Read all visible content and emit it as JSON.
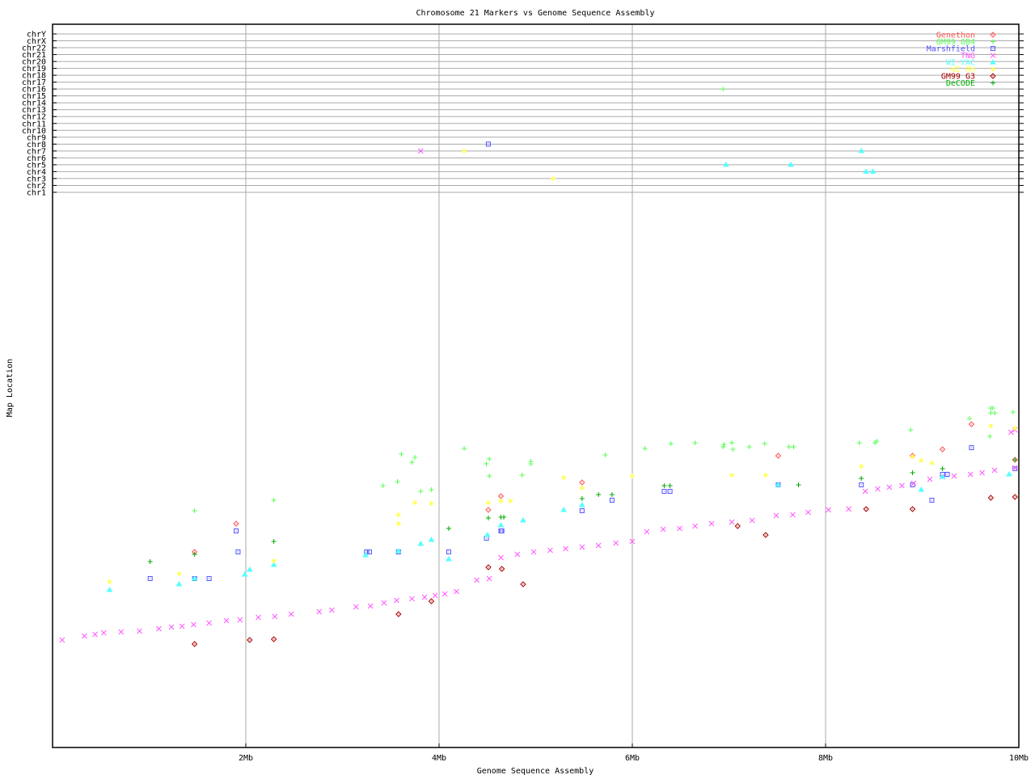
{
  "chart_data": {
    "type": "scatter",
    "title": "Chromosome 21 Markers vs Genome Sequence Assembly",
    "xlabel": "Genome Sequence Assembly",
    "ylabel": "Map Location",
    "xlim": [
      0,
      10
    ],
    "x_unit": "Mb",
    "x_ticks": [
      "2Mb",
      "4Mb",
      "6Mb",
      "8Mb",
      "10Mb"
    ],
    "x_tick_values": [
      2,
      4,
      6,
      8,
      10
    ],
    "ylim": [
      0,
      68.5
    ],
    "grid": true,
    "legend_placement": "top-right",
    "chromosome_rows": [
      "chrY",
      "chrX",
      "chr22",
      "chr21",
      "chr20",
      "chr19",
      "chr18",
      "chr17",
      "chr16",
      "chr15",
      "chr14",
      "chr13",
      "chr12",
      "chr11",
      "chr10",
      "chr9",
      "chr8",
      "chr7",
      "chr6",
      "chr5",
      "chr4",
      "chr3",
      "chr2",
      "chr1"
    ],
    "series": [
      {
        "name": "Genethon",
        "color": "#ff5555",
        "marker": "diamond",
        "x": [
          1.47,
          1.9,
          4.51,
          4.64,
          5.48,
          7.51,
          8.9,
          9.21,
          9.51,
          9.96
        ],
        "y": [
          24.2,
          27.7,
          29.4,
          31.1,
          32.8,
          36.1,
          36.1,
          36.9,
          40.0,
          35.6
        ],
        "other_chr": []
      },
      {
        "name": "GM99 GB4",
        "color": "#55ff55",
        "marker": "plus",
        "x": [
          1.47,
          2.29,
          3.42,
          3.57,
          3.61,
          3.72,
          3.75,
          3.81,
          3.92,
          4.26,
          4.49,
          4.52,
          4.52,
          4.86,
          4.95,
          4.95,
          5.72,
          6.13,
          6.4,
          6.65,
          6.94,
          6.95,
          7.03,
          7.04,
          7.21,
          7.37,
          7.62,
          7.67,
          8.35,
          8.51,
          8.53,
          8.88,
          9.49,
          9.71,
          9.73,
          9.71,
          9.75,
          9.7,
          9.94
        ],
        "y": [
          29.3,
          30.6,
          32.4,
          32.9,
          36.3,
          35.3,
          35.9,
          31.7,
          31.9,
          37.0,
          35.1,
          35.7,
          33.6,
          33.7,
          35.4,
          35.1,
          36.2,
          37.0,
          37.6,
          37.7,
          37.2,
          37.5,
          37.7,
          36.9,
          37.2,
          37.6,
          37.2,
          37.2,
          37.7,
          37.7,
          37.9,
          39.3,
          40.7,
          42.0,
          42.0,
          41.4,
          41.4,
          38.5,
          41.5
        ],
        "other_chr": [
          {
            "x": 6.94,
            "chr": "chr16"
          }
        ]
      },
      {
        "name": "Marshfield",
        "color": "#5555ff",
        "marker": "square",
        "x": [
          1.01,
          1.47,
          1.62,
          1.9,
          1.92,
          3.25,
          3.28,
          3.58,
          4.1,
          4.49,
          4.64,
          4.65,
          5.48,
          5.79,
          6.33,
          6.39,
          7.51,
          8.37,
          8.9,
          9.1,
          9.21,
          9.26,
          9.51,
          9.96
        ],
        "y": [
          20.9,
          20.9,
          20.9,
          26.8,
          24.2,
          24.2,
          24.2,
          24.2,
          24.2,
          25.9,
          26.8,
          26.8,
          29.3,
          30.6,
          31.7,
          31.7,
          32.5,
          32.5,
          32.5,
          30.6,
          33.8,
          33.8,
          37.1,
          34.5
        ],
        "other_chr": [
          {
            "x": 4.51,
            "chr": "chr8"
          }
        ]
      },
      {
        "name": "TNG",
        "color": "#ff55ff",
        "marker": "cross",
        "x": [
          0.1,
          0.33,
          0.44,
          0.53,
          0.71,
          0.9,
          1.1,
          1.23,
          1.34,
          1.46,
          1.62,
          1.8,
          1.94,
          2.13,
          2.3,
          2.47,
          2.76,
          2.89,
          3.14,
          3.29,
          3.43,
          3.56,
          3.72,
          3.85,
          3.96,
          4.06,
          4.18,
          4.39,
          4.52,
          4.64,
          4.81,
          4.98,
          5.15,
          5.31,
          5.48,
          5.65,
          5.83,
          6.0,
          6.15,
          6.32,
          6.49,
          6.65,
          6.82,
          7.03,
          7.24,
          7.49,
          7.66,
          7.82,
          8.03,
          8.24,
          8.41,
          8.54,
          8.66,
          8.79,
          8.91,
          9.08,
          9.21,
          9.33,
          9.5,
          9.62,
          9.75,
          9.96,
          9.92,
          9.96
        ],
        "y": [
          13.3,
          13.8,
          14.0,
          14.2,
          14.3,
          14.4,
          14.7,
          14.9,
          15.0,
          15.2,
          15.4,
          15.7,
          15.8,
          16.1,
          16.2,
          16.5,
          16.8,
          17.0,
          17.4,
          17.5,
          17.9,
          18.2,
          18.4,
          18.6,
          18.8,
          19.0,
          19.3,
          20.7,
          20.9,
          23.5,
          23.9,
          24.2,
          24.4,
          24.6,
          24.8,
          25.0,
          25.3,
          25.5,
          26.7,
          27.0,
          27.1,
          27.4,
          27.7,
          27.9,
          28.1,
          28.7,
          28.8,
          29.1,
          29.4,
          29.5,
          31.7,
          32.0,
          32.2,
          32.4,
          32.7,
          33.2,
          33.5,
          33.6,
          33.8,
          34.0,
          34.3,
          34.6,
          39.0,
          39.3
        ],
        "other_chr": [
          {
            "x": 3.81,
            "chr": "chr7"
          }
        ]
      },
      {
        "name": "WI YAC",
        "color": "#55ffff",
        "marker": "triangle",
        "x": [
          0.59,
          1.31,
          1.47,
          1.99,
          2.04,
          2.29,
          3.24,
          3.58,
          3.81,
          3.92,
          4.1,
          4.5,
          4.64,
          4.87,
          5.29,
          5.48,
          7.51,
          8.99,
          9.21,
          9.9
        ],
        "y": [
          19.5,
          20.2,
          20.9,
          21.4,
          22.0,
          22.6,
          23.8,
          24.3,
          25.2,
          25.7,
          23.3,
          26.3,
          27.5,
          28.1,
          29.4,
          30.0,
          32.5,
          31.9,
          33.5,
          33.8
        ],
        "other_chr": [
          {
            "x": 6.97,
            "chr": "chr5"
          },
          {
            "x": 7.64,
            "chr": "chr5"
          },
          {
            "x": 8.37,
            "chr": "chr7"
          },
          {
            "x": 8.42,
            "chr": "chr4"
          },
          {
            "x": 8.49,
            "chr": "chr4"
          }
        ]
      },
      {
        "name": "WI RH",
        "color": "#ffff55",
        "marker": "asterisk",
        "x": [
          0.59,
          1.31,
          2.29,
          3.58,
          3.58,
          3.75,
          3.92,
          4.51,
          4.64,
          4.74,
          5.29,
          5.48,
          6.0,
          7.03,
          7.38,
          8.37,
          8.9,
          8.99,
          9.1,
          9.71,
          9.96
        ],
        "y": [
          20.5,
          21.5,
          23.1,
          28.8,
          27.7,
          30.3,
          30.2,
          30.3,
          30.5,
          30.5,
          33.4,
          32.1,
          33.6,
          33.7,
          33.7,
          34.8,
          36.0,
          35.5,
          35.2,
          39.8,
          39.5
        ],
        "other_chr": [
          {
            "x": 4.26,
            "chr": "chr7"
          },
          {
            "x": 5.18,
            "chr": "chr3"
          }
        ]
      },
      {
        "name": "GM99 G3",
        "color": "#aa0000",
        "marker": "diamond",
        "x": [
          1.47,
          2.04,
          2.29,
          3.58,
          3.92,
          4.51,
          4.65,
          4.87,
          7.09,
          7.38,
          8.42,
          8.9,
          9.71,
          9.96
        ],
        "y": [
          12.8,
          13.3,
          13.4,
          16.5,
          18.1,
          22.3,
          22.1,
          20.2,
          27.4,
          26.3,
          29.5,
          29.5,
          30.9,
          31.0
        ],
        "other_chr": []
      },
      {
        "name": "DeCODE",
        "color": "#00aa00",
        "marker": "plus",
        "x": [
          1.01,
          1.47,
          2.29,
          4.1,
          4.51,
          4.64,
          4.67,
          5.48,
          5.65,
          5.79,
          6.33,
          6.39,
          7.72,
          8.37,
          8.9,
          9.21,
          9.96
        ],
        "y": [
          23.0,
          23.9,
          25.5,
          27.1,
          28.4,
          28.5,
          28.5,
          30.8,
          31.3,
          31.3,
          32.4,
          32.4,
          32.5,
          33.3,
          34.0,
          34.5,
          35.6
        ],
        "other_chr": []
      }
    ]
  }
}
